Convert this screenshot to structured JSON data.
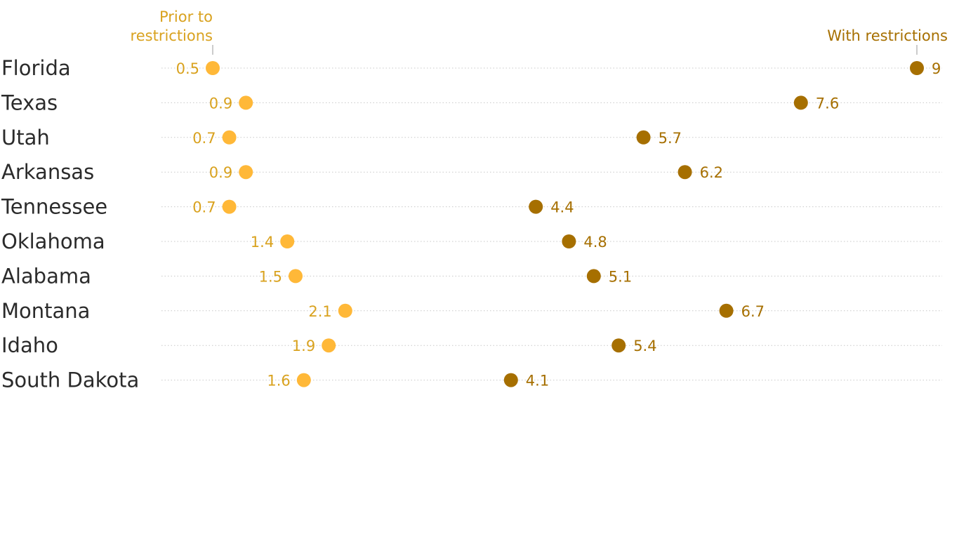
{
  "chart_data": {
    "type": "dumbbell",
    "title": "",
    "legend": {
      "start_label_line1": "Prior to",
      "start_label_line2": "restrictions",
      "end_label": "With restrictions"
    },
    "colors": {
      "start": "#ffb838",
      "start_text": "#d9a21f",
      "end": "#a66f00",
      "end_text": "#a66f00",
      "bar_start": "#ffdb91",
      "bar_end": "#d3b57a",
      "state_text": "#2b2b2b",
      "grid": "#c8c8c8",
      "tick": "#999999"
    },
    "xlim": [
      0.5,
      9
    ],
    "series": [
      {
        "state": "Florida",
        "prior": 0.5,
        "prior_label": "0.5",
        "with": 9,
        "with_label": "9"
      },
      {
        "state": "Texas",
        "prior": 0.9,
        "prior_label": "0.9",
        "with": 7.6,
        "with_label": "7.6"
      },
      {
        "state": "Utah",
        "prior": 0.7,
        "prior_label": "0.7",
        "with": 5.7,
        "with_label": "5.7"
      },
      {
        "state": "Arkansas",
        "prior": 0.9,
        "prior_label": "0.9",
        "with": 6.2,
        "with_label": "6.2"
      },
      {
        "state": "Tennessee",
        "prior": 0.7,
        "prior_label": "0.7",
        "with": 4.4,
        "with_label": "4.4"
      },
      {
        "state": "Oklahoma",
        "prior": 1.4,
        "prior_label": "1.4",
        "with": 4.8,
        "with_label": "4.8"
      },
      {
        "state": "Alabama",
        "prior": 1.5,
        "prior_label": "1.5",
        "with": 5.1,
        "with_label": "5.1"
      },
      {
        "state": "Montana",
        "prior": 2.1,
        "prior_label": "2.1",
        "with": 6.7,
        "with_label": "6.7"
      },
      {
        "state": "Idaho",
        "prior": 1.9,
        "prior_label": "1.9",
        "with": 5.4,
        "with_label": "5.4"
      },
      {
        "state": "South Dakota",
        "prior": 1.6,
        "prior_label": "1.6",
        "with": 4.1,
        "with_label": "4.1"
      }
    ]
  }
}
